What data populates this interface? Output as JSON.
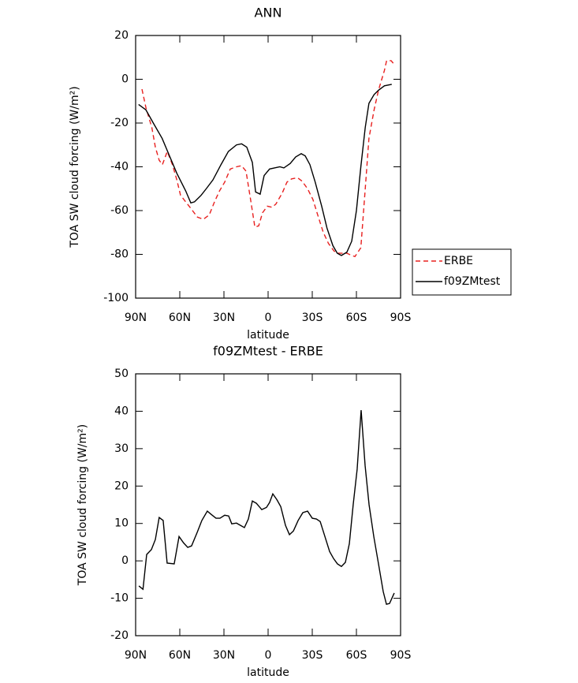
{
  "chart_data": [
    {
      "type": "line",
      "title": "ANN",
      "xlabel": "latitude",
      "ylabel": "TOA SW cloud forcing (W/m²)",
      "xlim": [
        90,
        -90
      ],
      "ylim": [
        -100,
        20
      ],
      "xticks": [
        {
          "value": 90,
          "label": "90N"
        },
        {
          "value": 60,
          "label": "60N"
        },
        {
          "value": 30,
          "label": "30N"
        },
        0,
        {
          "value": -30,
          "label": "30S"
        },
        {
          "value": -60,
          "label": "60S"
        },
        {
          "value": -90,
          "label": "90S"
        }
      ],
      "yticks": [
        -100,
        -80,
        -60,
        -40,
        -20,
        0,
        20
      ],
      "legend": "right",
      "series": [
        {
          "name": "ERBE",
          "color": "#e8201f",
          "linestyle": "dashed",
          "x": [
            85.7,
            83,
            79,
            76.6,
            74,
            71.8,
            68.5,
            65,
            62,
            59.5,
            56,
            52.5,
            48,
            44,
            40,
            36.4,
            33,
            29.5,
            25.7,
            21.5,
            18,
            15,
            11.9,
            9,
            6.4,
            3.8,
            0.5,
            -2.7,
            -5.3,
            -9.6,
            -12.8,
            -16,
            -20,
            -23,
            -26.8,
            -30.5,
            -33.7,
            -37.5,
            -41,
            -44.8,
            -48,
            -53.5,
            -56.8,
            -59,
            -63,
            -66,
            -68.5,
            -72,
            -75,
            -79,
            -80.5,
            -83.6,
            -86
          ],
          "values": [
            -4.5,
            -13,
            -22,
            -31,
            -37,
            -39,
            -33,
            -39,
            -46,
            -53,
            -56,
            -59,
            -63,
            -64,
            -62,
            -56,
            -51,
            -47,
            -41,
            -40,
            -39.5,
            -42,
            -55,
            -67.5,
            -67,
            -61,
            -58,
            -58.5,
            -57,
            -52,
            -47,
            -45.5,
            -45,
            -46.5,
            -50,
            -55,
            -62,
            -70,
            -75,
            -78.5,
            -79.5,
            -79.5,
            -80.5,
            -81,
            -77,
            -50,
            -27,
            -14,
            -5,
            4,
            8.5,
            8.5,
            6.5
          ]
        },
        {
          "name": "f09ZMtest",
          "color": "#000000",
          "linestyle": "solid",
          "x": [
            88,
            83,
            78,
            72,
            67,
            62,
            56,
            52.5,
            50,
            45.5,
            42,
            37.5,
            32,
            27,
            21.5,
            18,
            14.5,
            10.7,
            8.5,
            5.4,
            2.7,
            -1,
            -4.3,
            -8,
            -10.7,
            -15,
            -18.7,
            -22.5,
            -25.2,
            -28.4,
            -32,
            -36.4,
            -40,
            -44,
            -47,
            -49.8,
            -53.5,
            -56.8,
            -60,
            -63,
            -66,
            -68.5,
            -72,
            -75,
            -79,
            -84
          ],
          "values": [
            -11.5,
            -14,
            -20,
            -27,
            -35,
            -43,
            -51,
            -56.5,
            -56,
            -53,
            -50,
            -46,
            -39,
            -33,
            -30,
            -29.5,
            -31,
            -38,
            -51.5,
            -52.5,
            -44,
            -41,
            -40.5,
            -40,
            -40.5,
            -38.5,
            -35.5,
            -34,
            -35,
            -39,
            -47,
            -58,
            -68,
            -76,
            -79.5,
            -80.5,
            -79,
            -74,
            -60,
            -40,
            -22,
            -11,
            -7,
            -5,
            -3,
            -2.3
          ]
        }
      ]
    },
    {
      "type": "line",
      "title": "f09ZMtest - ERBE",
      "xlabel": "latitude",
      "ylabel": "TOA SW cloud forcing (W/m²)",
      "xlim": [
        90,
        -90
      ],
      "ylim": [
        -20,
        50
      ],
      "xticks": [
        {
          "value": 90,
          "label": "90N"
        },
        {
          "value": 60,
          "label": "60N"
        },
        {
          "value": 30,
          "label": "30N"
        },
        0,
        {
          "value": -30,
          "label": "30S"
        },
        {
          "value": -60,
          "label": "60S"
        },
        {
          "value": -90,
          "label": "90S"
        }
      ],
      "yticks": [
        -20,
        -10,
        0,
        10,
        20,
        30,
        40,
        50
      ],
      "color": "#000000",
      "x": [
        87.8,
        85,
        82.5,
        79.3,
        76.6,
        74,
        71.3,
        68.6,
        63.8,
        60.5,
        57.4,
        54.6,
        52,
        48.2,
        45,
        41.3,
        38.6,
        35.4,
        32.7,
        29.5,
        26.8,
        24.7,
        21.5,
        18.8,
        16.1,
        13.4,
        10.7,
        8,
        4.3,
        1.1,
        -1,
        -3.2,
        -5.9,
        -8.6,
        -11.8,
        -14.5,
        -17.2,
        -20.4,
        -23.6,
        -26.8,
        -30,
        -32.8,
        -35.4,
        -38.6,
        -41.8,
        -44.5,
        -47.1,
        -49.8,
        -52.5,
        -55.2,
        -57.8,
        -60.5,
        -63.2,
        -65.9,
        -68.6,
        -71.8,
        -75,
        -78.2,
        -80.4,
        -82.5,
        -85.7
      ],
      "values": [
        -6.7,
        -7.6,
        1.7,
        3,
        5.7,
        11.6,
        10.8,
        -0.6,
        -0.8,
        6.5,
        4.8,
        3.6,
        4,
        7.6,
        10.8,
        13.3,
        12.4,
        11.4,
        11.4,
        12.2,
        12,
        9.9,
        10.1,
        9.5,
        8.9,
        11.2,
        16,
        15.4,
        13.7,
        14.3,
        15.6,
        17.9,
        16.4,
        14.5,
        9.5,
        7,
        8,
        10.8,
        12.9,
        13.3,
        11.4,
        11.2,
        10.5,
        6.5,
        2.5,
        0.6,
        -0.8,
        -1.5,
        -0.4,
        4.6,
        15,
        24.5,
        40.3,
        25.5,
        15,
        6.5,
        -0.8,
        -8.2,
        -11.6,
        -11.4,
        -8.6
      ]
    }
  ]
}
